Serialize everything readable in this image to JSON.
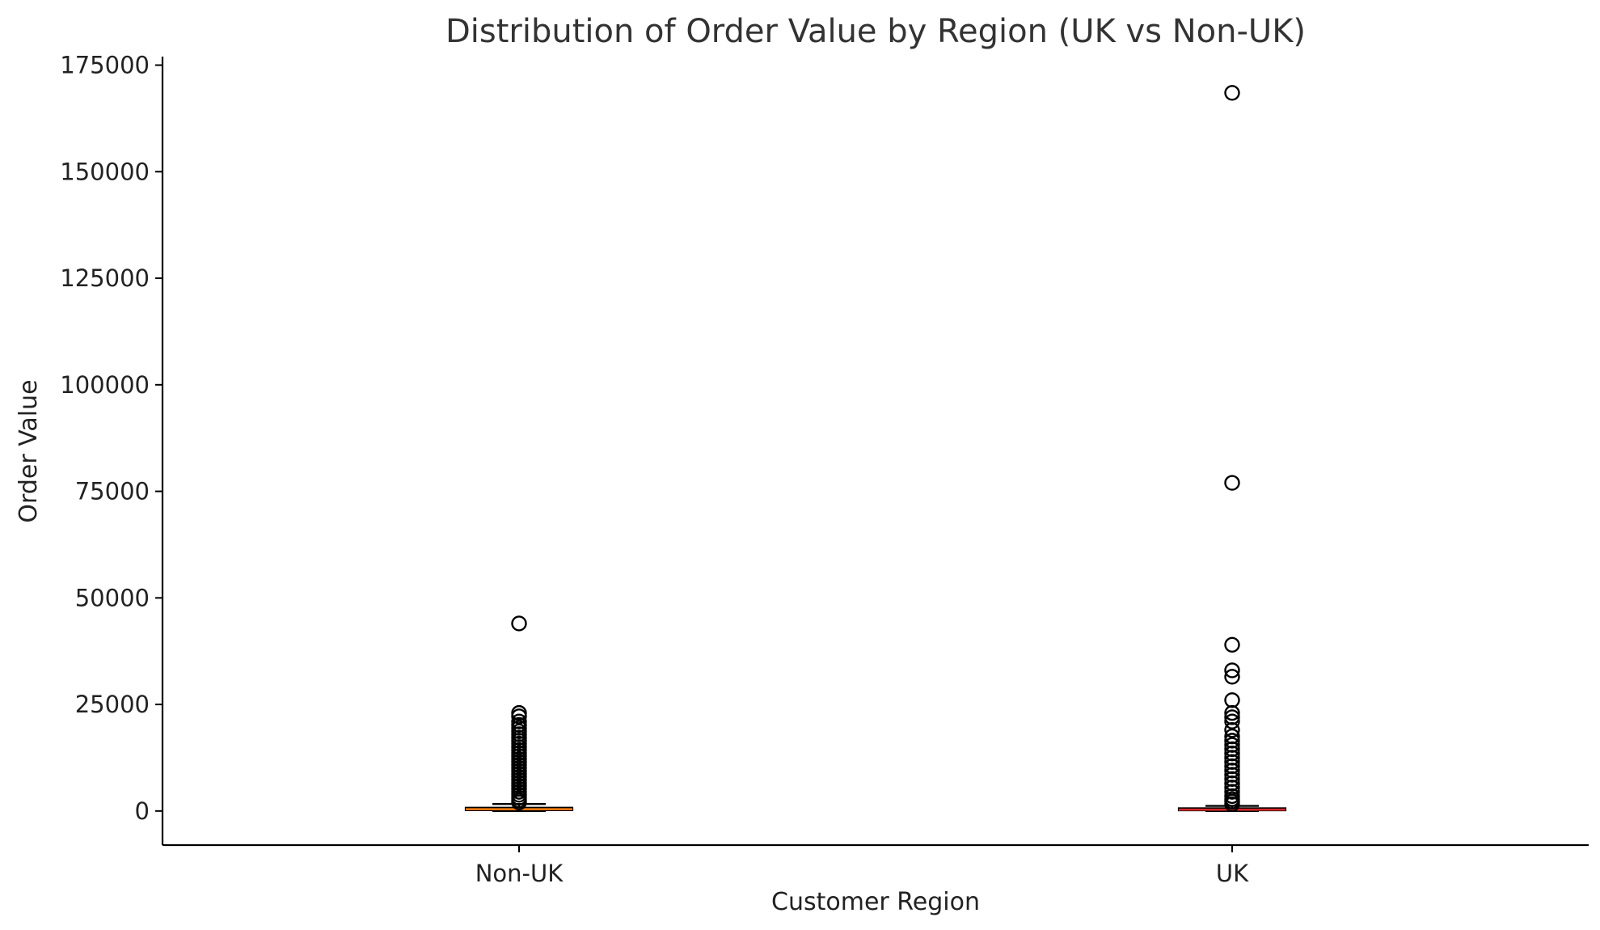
{
  "chart_data": {
    "type": "box",
    "title": "Distribution of Order Value by Region (UK vs Non-UK)",
    "xlabel": "Customer Region",
    "ylabel": "Order Value",
    "ylim": [
      -8000,
      177000
    ],
    "yticks": [
      0,
      25000,
      50000,
      75000,
      100000,
      125000,
      150000,
      175000
    ],
    "grid": false,
    "colors": {
      "box": "#000000",
      "median_non_uk": "#ff7f0e",
      "median_uk": "#d62728",
      "outlier": "#000000",
      "title": "#333333"
    },
    "categories": [
      "Non-UK",
      "UK"
    ],
    "boxes": [
      {
        "category": "Non-UK",
        "whislo": 0,
        "q1": 180,
        "median": 420,
        "q3": 780,
        "whishi": 1650,
        "outliers": [
          44000,
          23000,
          22200,
          21000,
          20200,
          19500,
          18700,
          18000,
          17200,
          16500,
          15800,
          15000,
          14300,
          13600,
          12900,
          12200,
          11500,
          10800,
          10100,
          9400,
          8700,
          8000,
          7300,
          6600,
          5900,
          5200,
          4500,
          3800,
          3100,
          2500,
          2000
        ]
      },
      {
        "category": "UK",
        "whislo": 0,
        "q1": 150,
        "median": 320,
        "q3": 650,
        "whishi": 1200,
        "outliers": [
          168500,
          77000,
          39000,
          33000,
          31500,
          26000,
          23000,
          22000,
          21000,
          19000,
          17500,
          16500,
          15500,
          14500,
          13500,
          12500,
          11500,
          10500,
          9500,
          8500,
          7500,
          6500,
          5500,
          4500,
          3500,
          2800,
          2200,
          1600
        ]
      }
    ]
  }
}
